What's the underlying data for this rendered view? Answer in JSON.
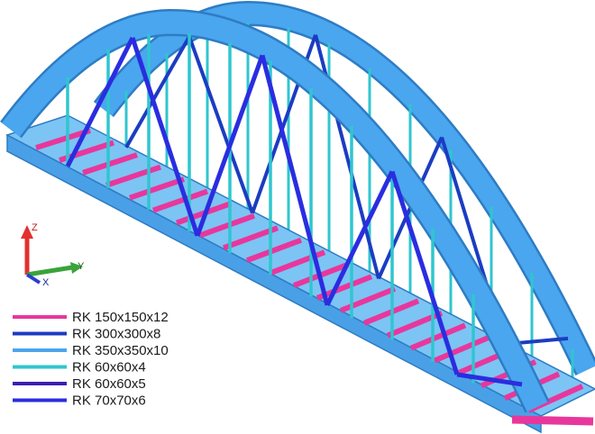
{
  "legend": {
    "items": [
      {
        "label": "RK 150x150x12",
        "color": "#e8379c"
      },
      {
        "label": "RK 300x300x8",
        "color": "#1c3cc2"
      },
      {
        "label": "RK 350x350x10",
        "color": "#4aa6ee"
      },
      {
        "label": "RK 60x60x4",
        "color": "#2fc6cf"
      },
      {
        "label": "RK 60x60x5",
        "color": "#3c1eb0"
      },
      {
        "label": "RK 70x70x6",
        "color": "#2a2de0"
      }
    ]
  },
  "axes": {
    "z": "Z",
    "y": "Y",
    "x": "X"
  }
}
